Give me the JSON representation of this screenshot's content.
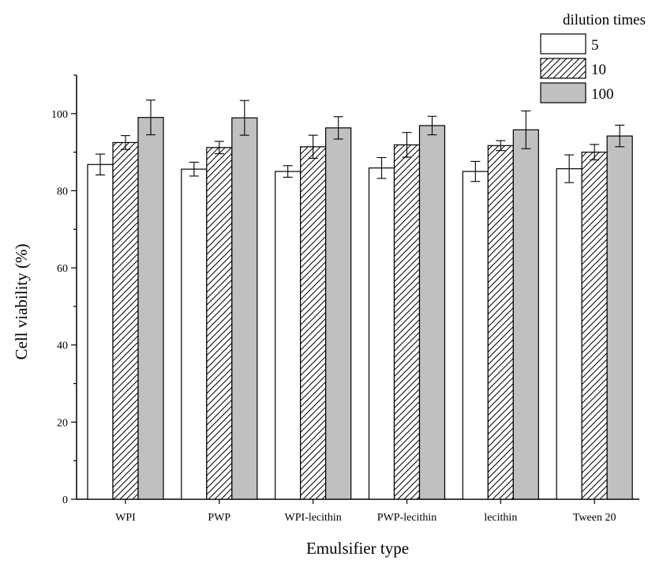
{
  "chart_data": {
    "type": "bar",
    "title": "",
    "xlabel": "Emulsifier type",
    "ylabel": "Cell viability (%)",
    "ylim": [
      0,
      110
    ],
    "yticks": [
      0,
      20,
      40,
      60,
      80,
      100
    ],
    "categories": [
      "WPI",
      "PWP",
      "WPI-lecithin",
      "PWP-lecithin",
      "lecithin",
      "Tween 20"
    ],
    "legend_title": "dilution times",
    "legend_position": "top-right",
    "grid": false,
    "series": [
      {
        "name": "5",
        "fill": "#ffffff",
        "pattern": "none",
        "values": [
          86.8,
          85.6,
          85.0,
          85.9,
          85.0,
          85.7
        ],
        "errors": [
          2.7,
          1.8,
          1.5,
          2.7,
          2.6,
          3.6
        ]
      },
      {
        "name": "10",
        "fill": "#ffffff",
        "pattern": "hatch",
        "values": [
          92.5,
          91.2,
          91.4,
          91.9,
          91.7,
          90.0
        ],
        "errors": [
          1.8,
          1.6,
          3.0,
          3.2,
          1.3,
          2.0
        ]
      },
      {
        "name": "100",
        "fill": "#c0c0c0",
        "pattern": "none",
        "values": [
          99.0,
          98.9,
          96.3,
          96.9,
          95.8,
          94.2
        ],
        "errors": [
          4.5,
          4.5,
          2.9,
          2.4,
          4.9,
          2.8
        ]
      }
    ]
  }
}
